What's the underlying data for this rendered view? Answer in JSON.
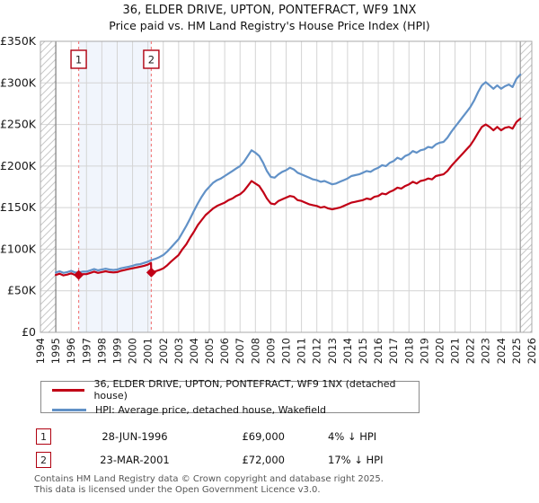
{
  "title": "36, ELDER DRIVE, UPTON, PONTEFRACT, WF9 1NX",
  "subtitle": "Price paid vs. HM Land Registry's House Price Index (HPI)",
  "chart_data": {
    "type": "line",
    "title": "Price paid vs. HM Land Registry's House Price Index (HPI)",
    "x_axis": {
      "start": 1994,
      "end": 2026,
      "tick_years": [
        1994,
        1995,
        1996,
        1997,
        1998,
        1999,
        2000,
        2001,
        2002,
        2003,
        2004,
        2005,
        2006,
        2007,
        2008,
        2009,
        2010,
        2011,
        2012,
        2013,
        2014,
        2015,
        2016,
        2017,
        2018,
        2019,
        2020,
        2021,
        2022,
        2023,
        2024,
        2025,
        2026
      ]
    },
    "y_axis": {
      "min": 0,
      "max": 350,
      "step": 50,
      "tick_labels": [
        "£0",
        "£50K",
        "£100K",
        "£150K",
        "£200K",
        "£250K",
        "£300K",
        "£350K"
      ]
    },
    "data_start": 1995.0,
    "data_end": 2025.25,
    "shaded_span": [
      1996.49,
      2001.22
    ],
    "grid": true,
    "colors": {
      "property": "#c10016",
      "hpi": "#6191c7",
      "grid": "#d4d4d4",
      "border": "#a8a8a8",
      "sale_line": "#f28080",
      "shade": "#e9effb",
      "hatch": "#c8c8c8",
      "marker_box_border": "#b00010"
    },
    "series": [
      {
        "name": "36, ELDER DRIVE, UPTON, PONTEFRACT, WF9 1NX (detached house)",
        "color": "#c10016",
        "width": 2.2,
        "points": [
          [
            1995.0,
            69
          ],
          [
            1995.25,
            70.5
          ],
          [
            1995.5,
            68.5
          ],
          [
            1995.75,
            69.5
          ],
          [
            1996.0,
            71
          ],
          [
            1996.25,
            69
          ],
          [
            1996.49,
            69
          ],
          [
            1996.75,
            70
          ],
          [
            1997.0,
            70
          ],
          [
            1997.25,
            71.5
          ],
          [
            1997.5,
            73
          ],
          [
            1997.75,
            71.5
          ],
          [
            1998.0,
            72.5
          ],
          [
            1998.25,
            73.5
          ],
          [
            1998.5,
            72.5
          ],
          [
            1998.75,
            72
          ],
          [
            1999.0,
            72.5
          ],
          [
            1999.25,
            74
          ],
          [
            1999.5,
            75
          ],
          [
            1999.75,
            76
          ],
          [
            2000.0,
            77
          ],
          [
            2000.25,
            78
          ],
          [
            2000.5,
            79
          ],
          [
            2000.75,
            80
          ],
          [
            2001.0,
            81.5
          ],
          [
            2001.2,
            83.5
          ],
          [
            2001.22,
            72
          ],
          [
            2001.5,
            73.5
          ],
          [
            2001.75,
            75
          ],
          [
            2002.0,
            77
          ],
          [
            2002.25,
            80.5
          ],
          [
            2002.5,
            85
          ],
          [
            2002.75,
            89
          ],
          [
            2003.0,
            93
          ],
          [
            2003.25,
            100
          ],
          [
            2003.5,
            106
          ],
          [
            2003.75,
            114
          ],
          [
            2004.0,
            121
          ],
          [
            2004.25,
            129
          ],
          [
            2004.5,
            135
          ],
          [
            2004.75,
            141
          ],
          [
            2005.0,
            145
          ],
          [
            2005.25,
            149
          ],
          [
            2005.5,
            152
          ],
          [
            2005.75,
            154
          ],
          [
            2006.0,
            156
          ],
          [
            2006.25,
            159
          ],
          [
            2006.5,
            161
          ],
          [
            2006.75,
            164
          ],
          [
            2007.0,
            166
          ],
          [
            2007.25,
            170
          ],
          [
            2007.5,
            176
          ],
          [
            2007.75,
            182
          ],
          [
            2008.0,
            179
          ],
          [
            2008.25,
            176
          ],
          [
            2008.5,
            169
          ],
          [
            2008.75,
            161
          ],
          [
            2009.0,
            155
          ],
          [
            2009.25,
            154
          ],
          [
            2009.5,
            158
          ],
          [
            2009.75,
            160
          ],
          [
            2010.0,
            162
          ],
          [
            2010.25,
            164
          ],
          [
            2010.5,
            163
          ],
          [
            2010.75,
            159
          ],
          [
            2011.0,
            158
          ],
          [
            2011.25,
            156
          ],
          [
            2011.5,
            154
          ],
          [
            2011.75,
            153
          ],
          [
            2012.0,
            152
          ],
          [
            2012.25,
            150
          ],
          [
            2012.5,
            151
          ],
          [
            2012.75,
            149
          ],
          [
            2013.0,
            148
          ],
          [
            2013.25,
            149
          ],
          [
            2013.5,
            150
          ],
          [
            2013.75,
            152
          ],
          [
            2014.0,
            154
          ],
          [
            2014.25,
            156
          ],
          [
            2014.5,
            157
          ],
          [
            2014.75,
            158
          ],
          [
            2015.0,
            159
          ],
          [
            2015.25,
            161
          ],
          [
            2015.5,
            160
          ],
          [
            2015.75,
            163
          ],
          [
            2016.0,
            164
          ],
          [
            2016.25,
            167
          ],
          [
            2016.5,
            166
          ],
          [
            2016.75,
            169
          ],
          [
            2017.0,
            171
          ],
          [
            2017.25,
            174
          ],
          [
            2017.5,
            173
          ],
          [
            2017.75,
            176
          ],
          [
            2018.0,
            178
          ],
          [
            2018.25,
            181
          ],
          [
            2018.5,
            179
          ],
          [
            2018.75,
            182
          ],
          [
            2019.0,
            183
          ],
          [
            2019.25,
            185
          ],
          [
            2019.5,
            184
          ],
          [
            2019.75,
            188
          ],
          [
            2020.0,
            189
          ],
          [
            2020.25,
            190
          ],
          [
            2020.5,
            194
          ],
          [
            2020.75,
            200
          ],
          [
            2021.0,
            205
          ],
          [
            2021.25,
            210
          ],
          [
            2021.5,
            215
          ],
          [
            2021.75,
            220
          ],
          [
            2022.0,
            225
          ],
          [
            2022.25,
            232
          ],
          [
            2022.5,
            240
          ],
          [
            2022.75,
            247
          ],
          [
            2023.0,
            250
          ],
          [
            2023.25,
            247
          ],
          [
            2023.5,
            243
          ],
          [
            2023.75,
            247
          ],
          [
            2024.0,
            243
          ],
          [
            2024.25,
            246
          ],
          [
            2024.5,
            247
          ],
          [
            2024.75,
            245
          ],
          [
            2025.0,
            253
          ],
          [
            2025.25,
            257
          ]
        ]
      },
      {
        "name": "HPI: Average price, detached house, Wakefield",
        "color": "#6191c7",
        "width": 2.2,
        "points": [
          [
            1995.0,
            72
          ],
          [
            1995.25,
            73.5
          ],
          [
            1995.5,
            71.5
          ],
          [
            1995.75,
            72.5
          ],
          [
            1996.0,
            74
          ],
          [
            1996.25,
            72
          ],
          [
            1996.5,
            72
          ],
          [
            1996.75,
            73
          ],
          [
            1997.0,
            73
          ],
          [
            1997.25,
            74.5
          ],
          [
            1997.5,
            76
          ],
          [
            1997.75,
            74.5
          ],
          [
            1998.0,
            75.5
          ],
          [
            1998.25,
            76.5
          ],
          [
            1998.5,
            75.5
          ],
          [
            1998.75,
            75
          ],
          [
            1999.0,
            75.5
          ],
          [
            1999.25,
            77
          ],
          [
            1999.5,
            78
          ],
          [
            1999.75,
            79
          ],
          [
            2000.0,
            80
          ],
          [
            2000.25,
            81.5
          ],
          [
            2000.5,
            82
          ],
          [
            2000.75,
            83.5
          ],
          [
            2001.0,
            85
          ],
          [
            2001.25,
            87
          ],
          [
            2001.5,
            88.5
          ],
          [
            2001.75,
            90.5
          ],
          [
            2002.0,
            93
          ],
          [
            2002.25,
            97
          ],
          [
            2002.5,
            102
          ],
          [
            2002.75,
            107
          ],
          [
            2003.0,
            112
          ],
          [
            2003.25,
            120
          ],
          [
            2003.5,
            128
          ],
          [
            2003.75,
            137
          ],
          [
            2004.0,
            146
          ],
          [
            2004.25,
            155
          ],
          [
            2004.5,
            163
          ],
          [
            2004.75,
            170
          ],
          [
            2005.0,
            175
          ],
          [
            2005.25,
            180
          ],
          [
            2005.5,
            183
          ],
          [
            2005.75,
            185
          ],
          [
            2006.0,
            188
          ],
          [
            2006.25,
            191
          ],
          [
            2006.5,
            194
          ],
          [
            2006.75,
            197
          ],
          [
            2007.0,
            200
          ],
          [
            2007.25,
            205
          ],
          [
            2007.5,
            212
          ],
          [
            2007.75,
            219
          ],
          [
            2008.0,
            216
          ],
          [
            2008.25,
            212
          ],
          [
            2008.5,
            204
          ],
          [
            2008.75,
            194
          ],
          [
            2009.0,
            187
          ],
          [
            2009.25,
            186
          ],
          [
            2009.5,
            190
          ],
          [
            2009.75,
            193
          ],
          [
            2010.0,
            195
          ],
          [
            2010.25,
            198
          ],
          [
            2010.5,
            196
          ],
          [
            2010.75,
            192
          ],
          [
            2011.0,
            190
          ],
          [
            2011.25,
            188
          ],
          [
            2011.5,
            186
          ],
          [
            2011.75,
            184
          ],
          [
            2012.0,
            183
          ],
          [
            2012.25,
            181
          ],
          [
            2012.5,
            182
          ],
          [
            2012.75,
            180
          ],
          [
            2013.0,
            178
          ],
          [
            2013.25,
            179
          ],
          [
            2013.5,
            181
          ],
          [
            2013.75,
            183
          ],
          [
            2014.0,
            185
          ],
          [
            2014.25,
            188
          ],
          [
            2014.5,
            189
          ],
          [
            2014.75,
            190
          ],
          [
            2015.0,
            192
          ],
          [
            2015.25,
            194
          ],
          [
            2015.5,
            193
          ],
          [
            2015.75,
            196
          ],
          [
            2016.0,
            198
          ],
          [
            2016.25,
            201
          ],
          [
            2016.5,
            200
          ],
          [
            2016.75,
            204
          ],
          [
            2017.0,
            206
          ],
          [
            2017.25,
            210
          ],
          [
            2017.5,
            208
          ],
          [
            2017.75,
            212
          ],
          [
            2018.0,
            214
          ],
          [
            2018.25,
            218
          ],
          [
            2018.5,
            216
          ],
          [
            2018.75,
            219
          ],
          [
            2019.0,
            220
          ],
          [
            2019.25,
            223
          ],
          [
            2019.5,
            222
          ],
          [
            2019.75,
            226
          ],
          [
            2020.0,
            228
          ],
          [
            2020.25,
            229
          ],
          [
            2020.5,
            234
          ],
          [
            2020.75,
            241
          ],
          [
            2021.0,
            247
          ],
          [
            2021.25,
            253
          ],
          [
            2021.5,
            259
          ],
          [
            2021.75,
            265
          ],
          [
            2022.0,
            271
          ],
          [
            2022.25,
            279
          ],
          [
            2022.5,
            289
          ],
          [
            2022.75,
            297
          ],
          [
            2023.0,
            301
          ],
          [
            2023.25,
            297
          ],
          [
            2023.5,
            293
          ],
          [
            2023.75,
            297
          ],
          [
            2024.0,
            293
          ],
          [
            2024.25,
            296
          ],
          [
            2024.5,
            298
          ],
          [
            2024.75,
            295
          ],
          [
            2025.0,
            305
          ],
          [
            2025.25,
            310
          ]
        ]
      }
    ],
    "sale_markers": [
      {
        "label": "1",
        "x": 1996.49,
        "y": 69
      },
      {
        "label": "2",
        "x": 2001.22,
        "y": 72
      }
    ]
  },
  "legend": {
    "items": [
      {
        "label": "36, ELDER DRIVE, UPTON, PONTEFRACT, WF9 1NX (detached house)",
        "color": "#c10016"
      },
      {
        "label": "HPI: Average price, detached house, Wakefield",
        "color": "#6191c7"
      }
    ]
  },
  "transactions": [
    {
      "num": "1",
      "date": "28-JUN-1996",
      "price": "£69,000",
      "hpi_diff": "4% ↓ HPI"
    },
    {
      "num": "2",
      "date": "23-MAR-2001",
      "price": "£72,000",
      "hpi_diff": "17% ↓ HPI"
    }
  ],
  "footer": {
    "line1": "Contains HM Land Registry data © Crown copyright and database right 2025.",
    "line2": "This data is licensed under the Open Government Licence v3.0."
  }
}
